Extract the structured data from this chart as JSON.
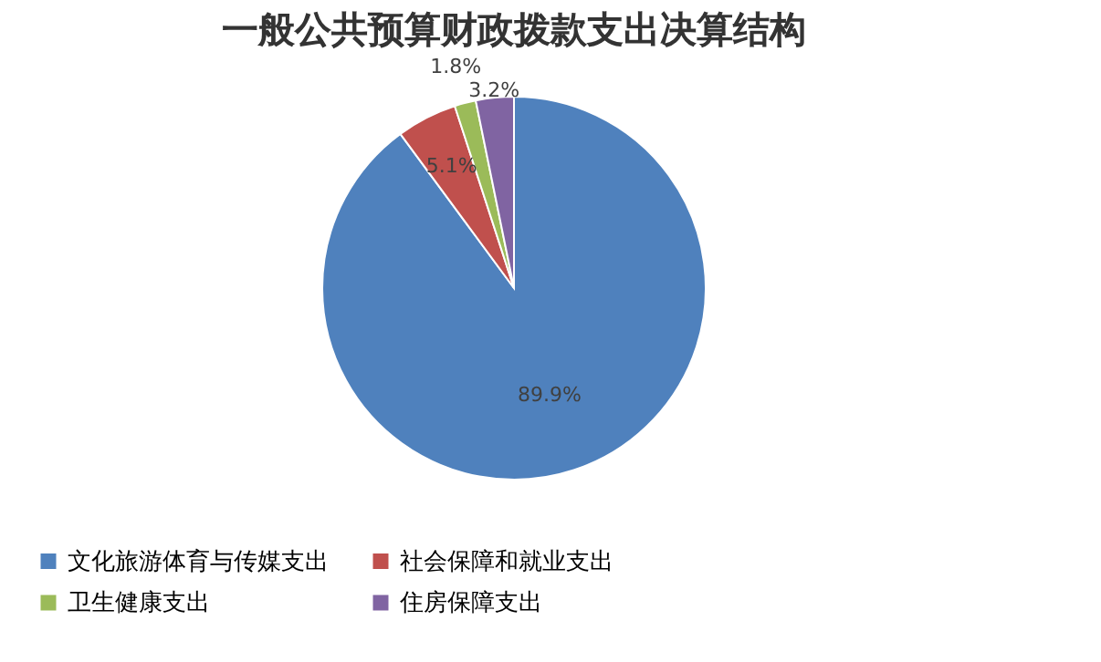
{
  "chart_data": {
    "type": "pie",
    "title": "一般公共预算财政拨款支出决算结构",
    "categories": [
      "文化旅游体育与传媒支出",
      "社会保障和就业支出",
      "卫生健康支出",
      "住房保障支出"
    ],
    "values": [
      89.9,
      5.1,
      1.8,
      3.2
    ],
    "value_labels": [
      "89.9%",
      "5.1%",
      "1.8%",
      "3.2%"
    ],
    "colors": [
      "#4f81bd",
      "#c0504d",
      "#9bbb59",
      "#8064a2"
    ],
    "legend": "bottom"
  }
}
